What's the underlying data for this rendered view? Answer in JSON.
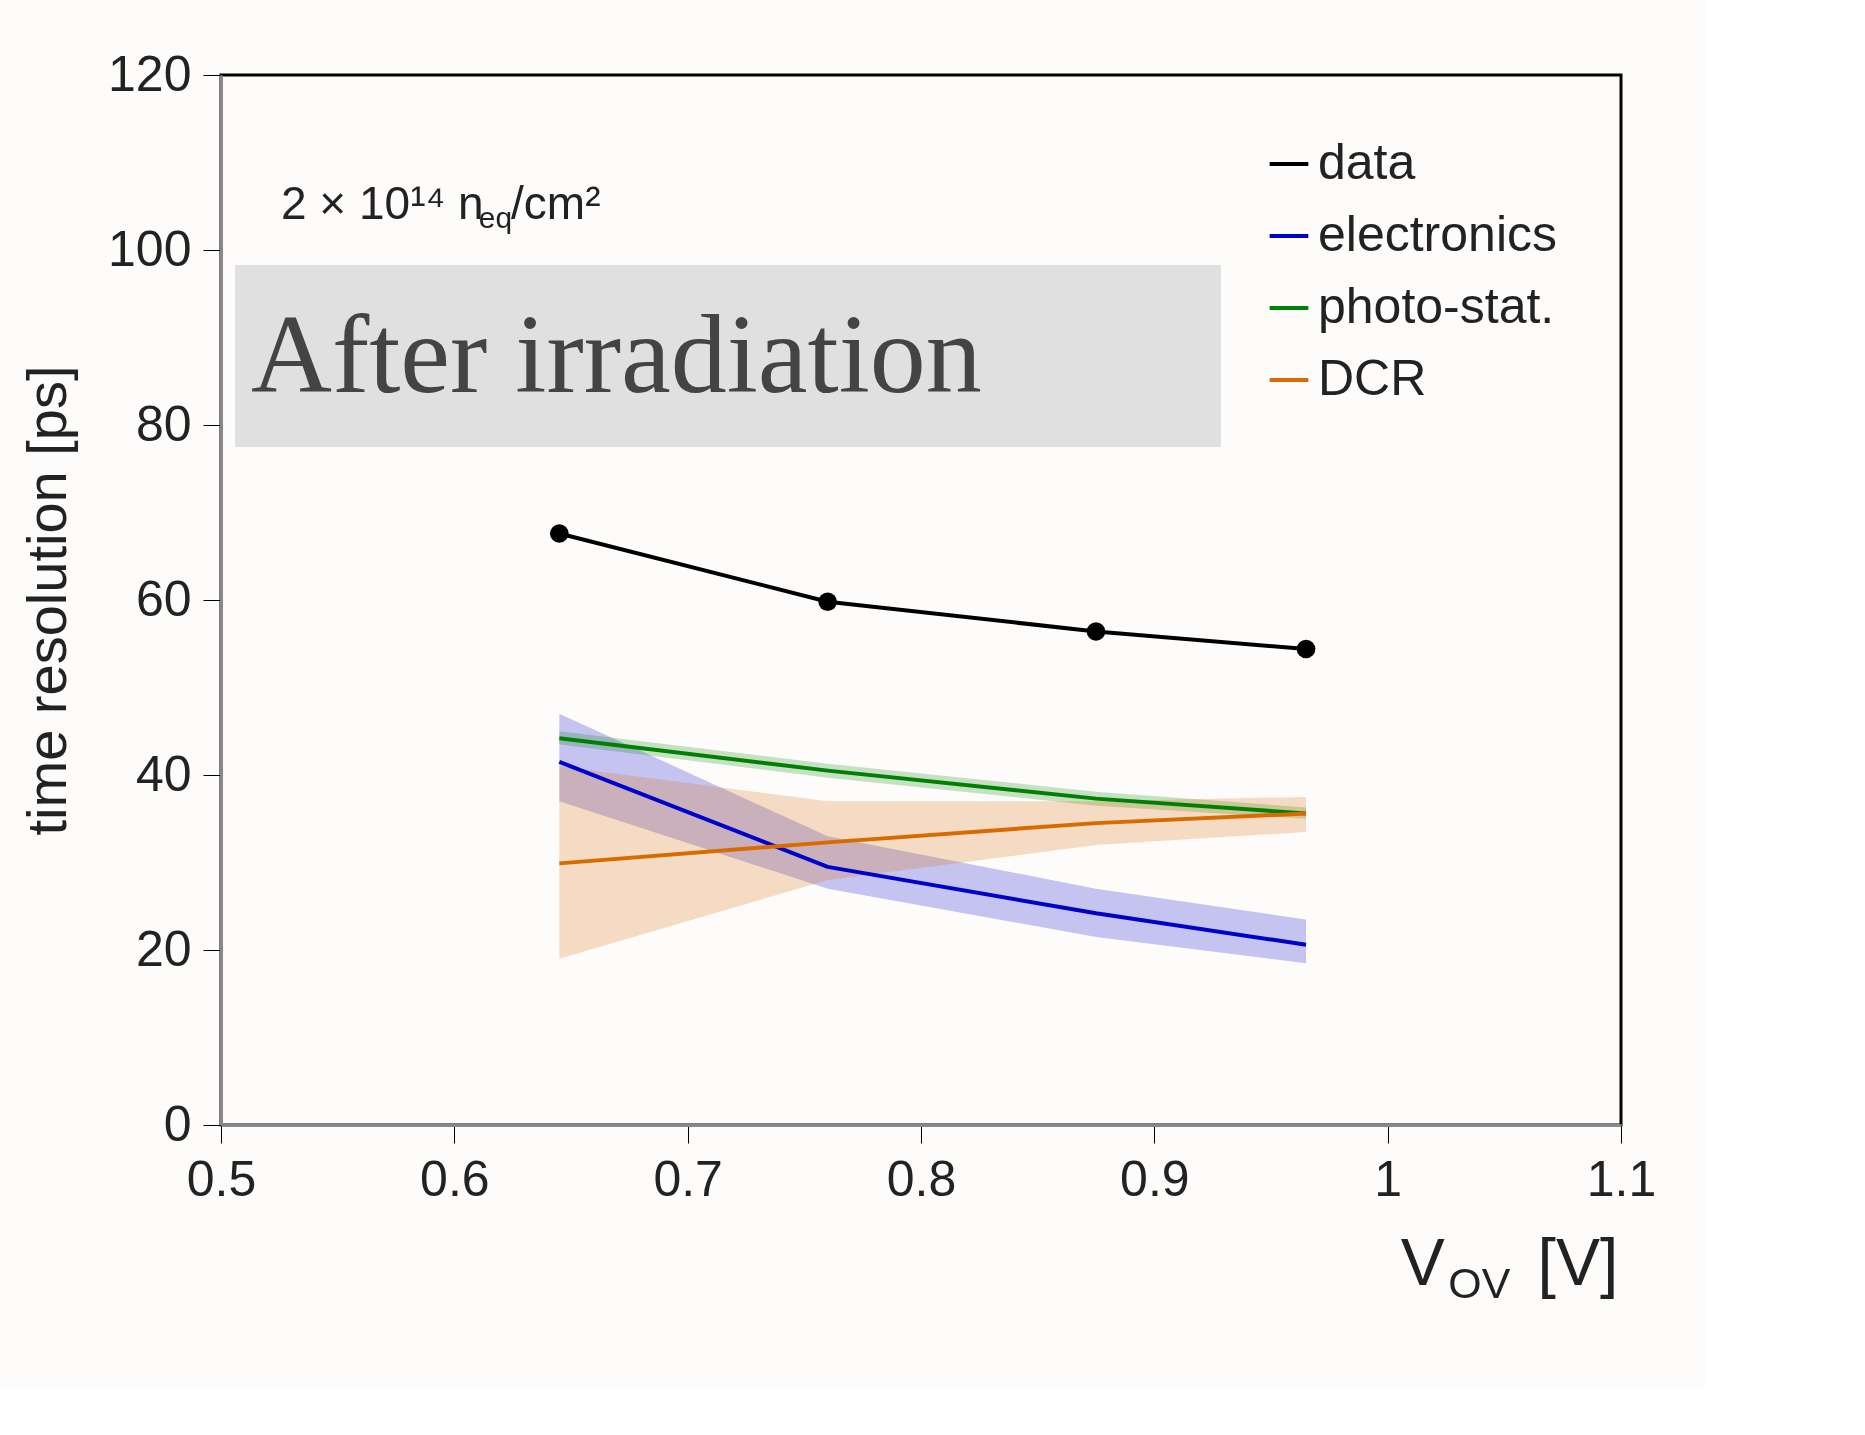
{
  "chart_data": {
    "type": "line",
    "xlabel": "V$_{OV}$ [V]",
    "ylabel": "time resolution [ps]",
    "annotations": [
      "2 × 10¹⁴ n$_{eq}$/cm²",
      "After irradiation"
    ],
    "x": [
      0.645,
      0.76,
      0.875,
      0.965
    ],
    "series": [
      {
        "name": "data",
        "color": "#000000",
        "marker": "circle",
        "values": [
          67.6,
          59.8,
          56.4,
          54.4
        ]
      },
      {
        "name": "electronics",
        "color": "#0000cc",
        "values": [
          41.5,
          29.5,
          24.2,
          20.6
        ],
        "lower": [
          37,
          27,
          21.5,
          18.5
        ],
        "upper": [
          47,
          33,
          27,
          23.5
        ]
      },
      {
        "name": "photo-stat.",
        "color": "#008000",
        "values": [
          44.2,
          40.5,
          37.3,
          35.6
        ],
        "lower": [
          43.5,
          39.7,
          36.5,
          35
        ],
        "upper": [
          45,
          41.3,
          38.1,
          36.3
        ]
      },
      {
        "name": "DCR",
        "color": "#d96a00",
        "values": [
          29.9,
          32.3,
          34.5,
          35.6
        ],
        "lower": [
          19,
          28,
          32,
          33.5
        ],
        "upper": [
          41,
          37,
          37,
          37.5
        ]
      }
    ],
    "xlim": [
      0.5,
      1.1
    ],
    "ylim": [
      0,
      120
    ],
    "xticks": [
      0.5,
      0.6,
      0.7,
      0.8,
      0.9,
      1,
      1.1
    ],
    "yticks": [
      0,
      20,
      40,
      60,
      80,
      100,
      120
    ],
    "grid": false,
    "legend": "top right"
  }
}
